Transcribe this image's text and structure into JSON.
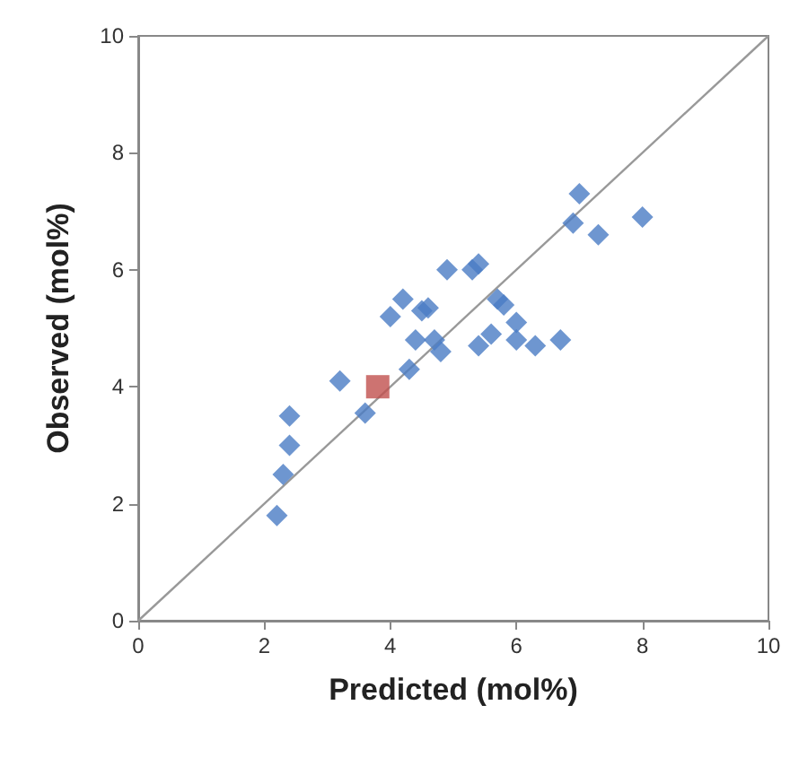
{
  "chart_data": {
    "type": "scatter",
    "xlabel": "Predicted (mol%)",
    "ylabel": "Observed (mol%)",
    "xlim": [
      0,
      10
    ],
    "ylim": [
      0,
      10
    ],
    "xticks": [
      0,
      2,
      4,
      6,
      8,
      10
    ],
    "yticks": [
      0,
      2,
      4,
      6,
      8,
      10
    ],
    "grid": false,
    "series": [
      {
        "marker": "diamond",
        "color": "#4a7cc4",
        "x": [
          2.2,
          2.3,
          2.4,
          2.4,
          3.2,
          3.6,
          4.0,
          4.2,
          4.3,
          4.4,
          4.5,
          4.6,
          4.7,
          4.8,
          4.9,
          5.3,
          5.4,
          5.4,
          5.6,
          5.7,
          5.8,
          6.0,
          6.0,
          6.3,
          6.7,
          6.9,
          7.0,
          7.3,
          8.0
        ],
        "values": [
          1.8,
          2.5,
          3.0,
          3.5,
          4.1,
          3.55,
          5.2,
          5.5,
          4.3,
          4.8,
          5.3,
          5.35,
          4.8,
          4.6,
          6.0,
          6.0,
          6.1,
          4.7,
          4.9,
          5.5,
          5.4,
          5.1,
          4.8,
          4.7,
          4.8,
          6.8,
          7.3,
          6.6,
          6.9
        ]
      },
      {
        "marker": "square",
        "color": "#c0504d",
        "x": [
          3.8
        ],
        "values": [
          4.0
        ]
      },
      {
        "type": "line",
        "marker": "none",
        "line_style": "solid",
        "color": "#999999",
        "x": [
          0,
          10
        ],
        "values": [
          0,
          10
        ]
      }
    ]
  }
}
